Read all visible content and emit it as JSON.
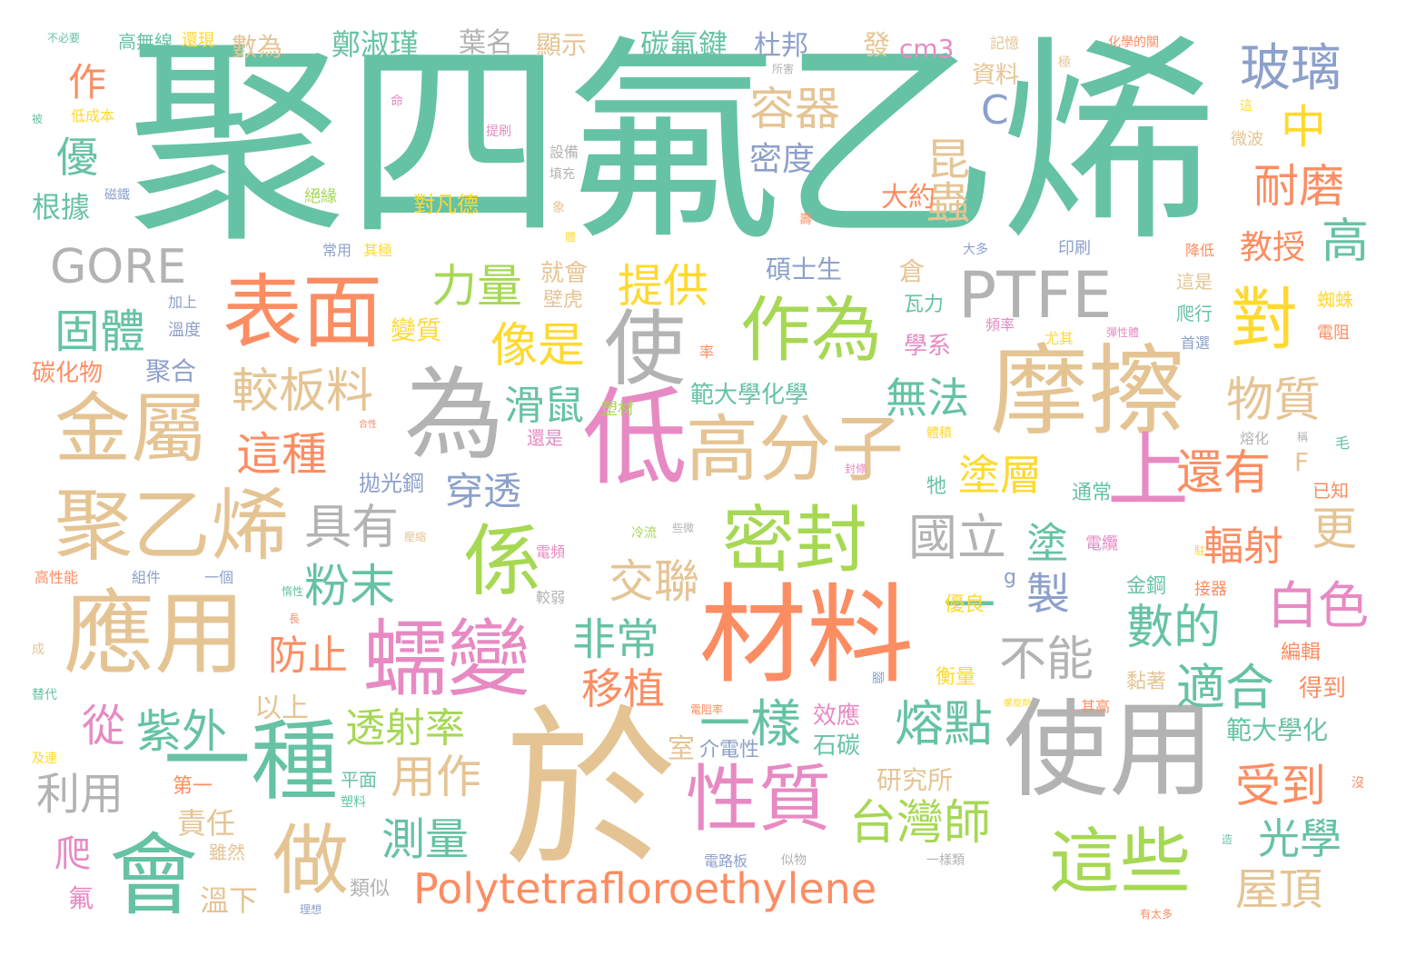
{
  "palette": {
    "green": "#66c2a5",
    "orange": "#fc8d62",
    "blue": "#8da0cb",
    "pink": "#e78ac3",
    "lime": "#a6d854",
    "yellow": "#ffd92f",
    "tan": "#e5c494",
    "gray": "#b3b3b3"
  },
  "words": {
    "w_jusi": "聚四氟乙烯",
    "w_yu": "於",
    "w_cailiao": "材料",
    "w_moca": "摩擦",
    "w_shiyong": "使用",
    "w_yingyong": "應用",
    "w_biaomian": "表面",
    "w_juyixi": "聚乙烯",
    "w_jinshu": "金屬",
    "w_wei": "為",
    "w_di": "低",
    "w_rubian": "蠕變",
    "w_hui": "會",
    "w_yizhong": "一種",
    "w_xingzhi": "性質",
    "w_gaofenzi": "高分子",
    "w_mifeng": "密封",
    "w_zhexie": "這些",
    "w_shang": "上",
    "w_zuowei": "作為",
    "w_shi": "使",
    "w_xi": "係",
    "w_ptfe": "PTFE",
    "w_zuo": "做",
    "w_polytetra": "Polytetrafloroethylene",
    "w_dui": "對",
    "w_gore": "GORE",
    "w_yiyang": "一樣",
    "w_rongdian": "熔點",
    "w_taiwanshi": "台灣師",
    "w_zijwai": "紫外",
    "w_jiaobanliao": "較板料",
    "w_zhezhong": "這種",
    "w_juyou": "具有",
    "w_fenmo": "粉末",
    "w_guoli": "國立",
    "w_tu": "塗",
    "w_zhi": "製",
    "w_yi": "一",
    "w_buneng": "不能",
    "w_shudi": "數的",
    "w_shihe": "適合",
    "w_baise": "白色",
    "w_fushe": "輻射",
    "w_huanyou": "還有",
    "w_wuzhi": "物質",
    "w_geng": "更",
    "w_gao": "高",
    "w_jiaoshou": "教授",
    "w_naimo": "耐磨",
    "w_zhong": "中",
    "w_boli": "玻璃",
    "w_rongqi": "容器",
    "w_kunchong": "昆蟲",
    "w_midu": "密度",
    "w_tigong": "提供",
    "w_liliang": "力量",
    "w_xiangshi": "像是",
    "w_huashu": "滑鼠",
    "w_chuantou": "穿透",
    "w_jiaolian": "交聯",
    "w_feichang": "非常",
    "w_yizhi": "移植",
    "w_fangzhi": "防止",
    "w_touShelv": "透射率",
    "w_yongzuo": "用作",
    "w_celiang": "測量",
    "w_liyong": "利用",
    "w_cong": "從",
    "w_guti": "固體",
    "w_you": "優",
    "w_zuo2": "作",
    "w_genju": "根據",
    "w_shouDao": "受到",
    "w_guangxue": "光學",
    "w_wuding": "屋頂",
    "w_tuceng": "塗層",
    "w_wufa": "無法",
    "w_yishang": "以上",
    "w_zeren": "責任",
    "w_pa": "爬",
    "w_fu": "氟",
    "w_wenxia": "溫下",
    "w_leisi": "類似",
    "w_pingmian": "平面",
    "w_suliao": "塑料",
    "w_diyi": "第一",
    "w_suiran": "雖然",
    "w_yanjiusuo": "研究所",
    "w_xiaoying": "效應",
    "w_shitan": "石碳",
    "w_shi2": "室",
    "w_jiedianxing": "介電性",
    "w_fanwei": "範大學化學",
    "w_bianzhi": "變質",
    "w_jiuhui": "就會",
    "w_bihu": "壁虎",
    "w_suocai": "塑材",
    "w_haishi": "還是",
    "w_paoguanggang": "拋光鋼",
    "w_shuoshisheng": "碩士生",
    "w_cang": "倉",
    "w_wali": "瓦力",
    "w_xuexi": "學系",
    "w_dayue": "大約",
    "w_zhengshujin": "鄭淑瑾",
    "w_yeming": "葉名",
    "w_xianshi": "顯示",
    "w_tanfujian": "碳氟鍵",
    "w_dubang": "杜邦",
    "w_fa": "發",
    "w_cm3": "cm3",
    "w_ziliao": "資料",
    "w_c": "C",
    "w_shuwei": "數為",
    "w_gaowuxian": "高無線",
    "w_huanxian": "還現",
    "w_bubiyao": "不必要",
    "w_jiyi": "記憶",
    "w_huaxuede": "化學的關",
    "w_dichengben": "低成本",
    "w_bei": "被",
    "w_ming": "命",
    "w_tishua": "提刷",
    "w_shebei": "設備",
    "w_tianchong": "填充",
    "w_duifande": "對凡德",
    "w_jueyuan": "絕緣",
    "w_cijie": "磁鐵",
    "w_suohai": "所害",
    "w_ji": "極",
    "w_zhe": "這",
    "w_weibo": "微波",
    "w_xiang": "象",
    "w_shou": "壽",
    "w_changyong": "常用",
    "w_qiji": "其極",
    "w_jiashang": "加上",
    "w_wendu": "溫度",
    "w_tanhuawu": "碳化物",
    "w_juhe": "聚合",
    "w_daduo": "大多",
    "w_yinshua": "印刷",
    "w_jiangdi": "降低",
    "w_zhishi": "這是",
    "w_pinlv": "頻率",
    "w_paxing": "爬行",
    "w_youqi": "尤其",
    "w_shouxuan": "首選",
    "w_zhizhu": "蜘蛛",
    "w_dianzu": "電阻",
    "w_tanxingti": "彈性體",
    "w_lv": "率",
    "w_hexing": "合性",
    "w_tiji": "體積",
    "w_ronghua": "熔化",
    "w_cheng": "稱",
    "w_mao": "毛",
    "w_yizhi2": "已知",
    "w_f": "F",
    "w_tongchang": "通常",
    "w_wu": "牠",
    "w_fengtiao": "封條",
    "w_dianpin": "電頻",
    "w_lengliu": "冷流",
    "w_xiewei": "些微",
    "w_dianlan": "電纜",
    "w_zhu": "駐",
    "w_jingang": "金鋼",
    "w_jieqi": "接器",
    "w_youliang": "優良",
    "w_g": "g",
    "w_jiaoruo": "較弱",
    "w_yasuo": "壓縮",
    "w_gaoxingneng": "高性能",
    "w_zujian": "組件",
    "w_yige": "一個",
    "w_guanxing": "惰性",
    "w_chang": "長",
    "w_cheng2": "成",
    "w_tidai": "替代",
    "w_jilian": "及連",
    "w_hengliang": "衡量",
    "w_nianzhe": "黏著",
    "w_bianji": "編輯",
    "w_dedao": "得到",
    "w_fanweidaxuehua": "範大學化",
    "w_jiao": "腳",
    "w_dianzulv": "電阻率",
    "w_qigao": "其高",
    "w_luoxuanji": "螺旋劑",
    "w_mei": "沒",
    "w_zao": "造",
    "w_dianluban": "電路板",
    "w_sisu": "似物",
    "w_yiyanglei": "一樣類",
    "w_lixiang": "理想",
    "w_youtaiduo": "有太多",
    "w_ti": "體"
  }
}
